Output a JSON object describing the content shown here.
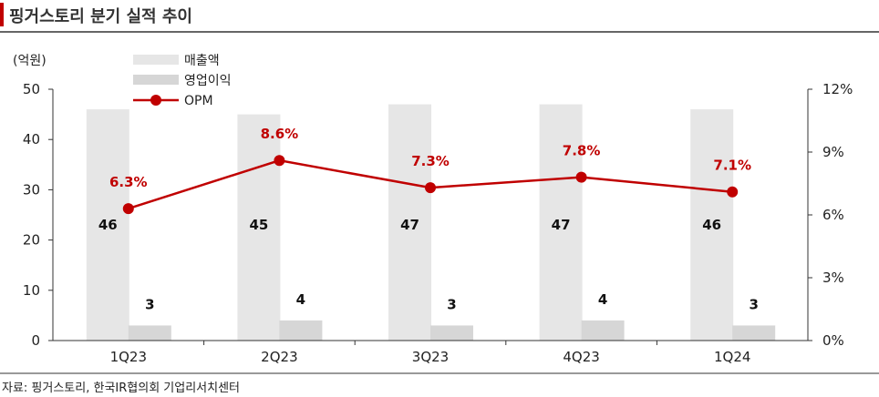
{
  "title": "핑거스토리 분기 실적 추이",
  "source": "자료: 핑거스토리, 한국IR협의회 기업리서치센터",
  "colors": {
    "revenue": "#e6e6e6",
    "op_income": "#d6d6d6",
    "opm": "#c00000",
    "title_bar": "#c00000"
  },
  "chart_data": {
    "type": "bar",
    "categories": [
      "1Q23",
      "2Q23",
      "3Q23",
      "4Q23",
      "1Q24"
    ],
    "y_unit": "(억원)",
    "ylim": [
      0,
      50
    ],
    "y_ticks": [
      "0",
      "10",
      "20",
      "30",
      "40",
      "50"
    ],
    "y2lim": [
      0,
      12
    ],
    "y2_ticks": [
      "0%",
      "3%",
      "6%",
      "9%",
      "12%"
    ],
    "legend_position": "top-left",
    "series": [
      {
        "name": "매출액",
        "type": "bar",
        "values": [
          46,
          45,
          47,
          47,
          46
        ],
        "labels": [
          "46",
          "45",
          "47",
          "47",
          "46"
        ]
      },
      {
        "name": "영업이익",
        "type": "bar",
        "values": [
          3,
          4,
          3,
          4,
          3
        ],
        "labels": [
          "3",
          "4",
          "3",
          "4",
          "3"
        ]
      },
      {
        "name": "OPM",
        "type": "line",
        "axis": "right",
        "values": [
          6.3,
          8.6,
          7.3,
          7.8,
          7.1
        ],
        "labels": [
          "6.3%",
          "8.6%",
          "7.3%",
          "7.8%",
          "7.1%"
        ]
      }
    ]
  }
}
